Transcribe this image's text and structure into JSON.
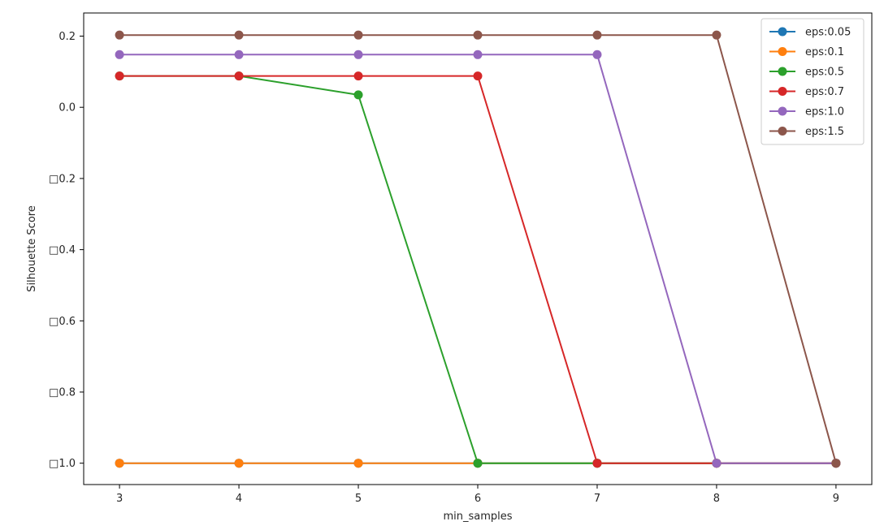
{
  "chart_data": {
    "type": "line",
    "title": "",
    "xlabel": "min_samples",
    "ylabel": "Silhouette Score",
    "x": [
      3,
      4,
      5,
      6,
      7,
      8,
      9
    ],
    "xlim": [
      2.7,
      9.3
    ],
    "ylim": [
      -1.06,
      0.265
    ],
    "x_ticks": [
      "3",
      "4",
      "5",
      "6",
      "7",
      "8",
      "9"
    ],
    "y_tick_values": [
      0.2,
      0.0,
      -0.2,
      -0.4,
      -0.6,
      -0.8,
      -1.0
    ],
    "y_ticks": [
      "0.2",
      "0.0",
      "□0.2",
      "□0.4",
      "□0.6",
      "□0.8",
      "□1.0"
    ],
    "grid": false,
    "legend_position": "top-right",
    "series": [
      {
        "name": "eps:0.05",
        "color": "#1f77b4",
        "values": [
          -1.0,
          -1.0,
          -1.0,
          -1.0,
          -1.0,
          -1.0,
          -1.0
        ]
      },
      {
        "name": "eps:0.1",
        "color": "#ff7f0e",
        "values": [
          -1.0,
          -1.0,
          -1.0,
          -1.0,
          -1.0,
          -1.0,
          -1.0
        ]
      },
      {
        "name": "eps:0.5",
        "color": "#2ca02c",
        "values": [
          0.088,
          0.088,
          0.035,
          -1.0,
          -1.0,
          -1.0,
          -1.0
        ]
      },
      {
        "name": "eps:0.7",
        "color": "#d62728",
        "values": [
          0.088,
          0.088,
          0.088,
          0.088,
          -1.0,
          -1.0,
          -1.0
        ]
      },
      {
        "name": "eps:1.0",
        "color": "#9467bd",
        "values": [
          0.148,
          0.148,
          0.148,
          0.148,
          0.148,
          -1.0,
          -1.0
        ]
      },
      {
        "name": "eps:1.5",
        "color": "#8c564b",
        "values": [
          0.203,
          0.203,
          0.203,
          0.203,
          0.203,
          0.203,
          -1.0
        ]
      }
    ]
  }
}
